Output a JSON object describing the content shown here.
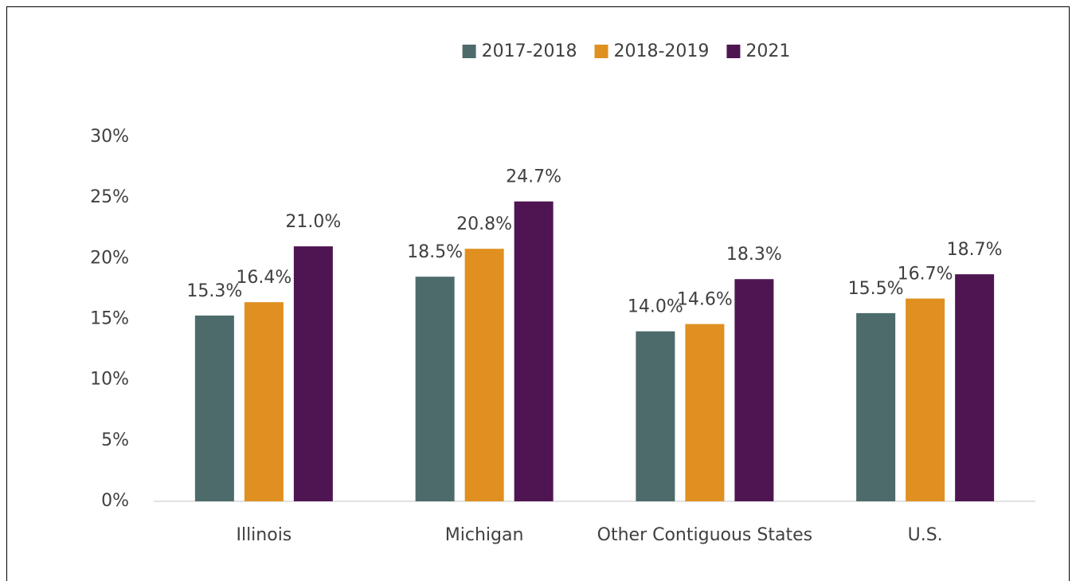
{
  "chart_data": {
    "type": "bar",
    "categories": [
      "Illinois",
      "Michigan",
      "Other Contiguous States",
      "U.S."
    ],
    "series": [
      {
        "name": "2017-2018",
        "color": "#4d6b6b",
        "values": [
          15.3,
          18.5,
          14.0,
          15.5
        ],
        "value_labels": [
          "15.3%",
          "18.5%",
          "14.0%",
          "15.5%"
        ]
      },
      {
        "name": "2018-2019",
        "color": "#e09020",
        "values": [
          16.4,
          20.8,
          14.6,
          16.7
        ],
        "value_labels": [
          "16.4%",
          "20.8%",
          "14.6%",
          "16.7%"
        ]
      },
      {
        "name": "2021",
        "color": "#4f1552",
        "values": [
          21.0,
          24.7,
          18.3,
          18.7
        ],
        "value_labels": [
          "21.0%",
          "24.7%",
          "18.3%",
          "18.7%"
        ]
      }
    ],
    "ylim": [
      0,
      30
    ],
    "yticks": [
      {
        "value": 0,
        "label": "0%"
      },
      {
        "value": 5,
        "label": "5%"
      },
      {
        "value": 10,
        "label": "10%"
      },
      {
        "value": 15,
        "label": "15%"
      },
      {
        "value": 20,
        "label": "20%"
      },
      {
        "value": 25,
        "label": "25%"
      },
      {
        "value": 30,
        "label": "30%"
      }
    ],
    "grid": false,
    "legend": "top"
  }
}
